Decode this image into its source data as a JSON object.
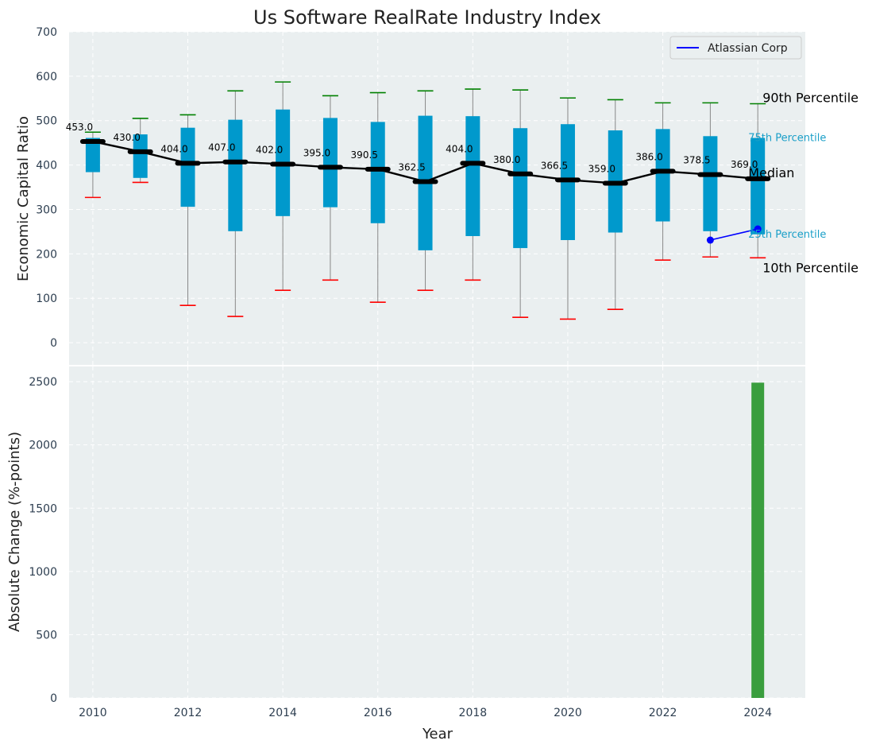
{
  "title": "Us Software RealRate Industry Index",
  "chart_data": [
    {
      "type": "box",
      "ylabel": "Economic Capital Ratio",
      "ylim": [
        -50,
        700
      ],
      "yticks": [
        0,
        100,
        200,
        300,
        400,
        500,
        600,
        700
      ],
      "years": [
        2010,
        2011,
        2012,
        2013,
        2014,
        2015,
        2016,
        2017,
        2018,
        2019,
        2020,
        2021,
        2022,
        2023,
        2024
      ],
      "p10": [
        327,
        361,
        84,
        59,
        118,
        141,
        91,
        118,
        141,
        57,
        53,
        75,
        186,
        193,
        191
      ],
      "q1": [
        384,
        371,
        306,
        251,
        285,
        305,
        269,
        208,
        240,
        213,
        231,
        248,
        273,
        251,
        244
      ],
      "median": [
        453.0,
        430.0,
        404.0,
        407.0,
        402.0,
        395.0,
        390.5,
        362.5,
        404.0,
        380.0,
        366.5,
        359.0,
        386.0,
        378.5,
        369.0
      ],
      "median_labels": [
        "453.0",
        "430.0",
        "404.0",
        "407.0",
        "402.0",
        "395.0",
        "390.5",
        "362.5",
        "404.0",
        "380.0",
        "366.5",
        "359.0",
        "386.0",
        "378.5",
        "369.0"
      ],
      "q3": [
        461,
        469,
        484,
        502,
        525,
        506,
        497,
        511,
        510,
        483,
        492,
        478,
        481,
        465,
        461
      ],
      "p90": [
        474,
        505,
        513,
        567,
        587,
        556,
        563,
        567,
        571,
        569,
        551,
        547,
        540,
        540,
        538
      ],
      "company": {
        "name": "Atlassian Corp",
        "x": [
          2023,
          2024
        ],
        "y": [
          231,
          256
        ]
      },
      "annotations": {
        "p90": "90th Percentile",
        "q3": "75th Percentile",
        "median": "Median",
        "q1": "25th Percentile",
        "p10": "10th Percentile"
      },
      "legend_position": "top-right",
      "grid": true
    },
    {
      "type": "bar",
      "xlabel": "Year",
      "ylabel": "Absolute Change (%-points)",
      "ylim": [
        0,
        2620
      ],
      "yticks": [
        0,
        500,
        1000,
        1500,
        2000,
        2500
      ],
      "xticks": [
        2010,
        2012,
        2014,
        2016,
        2018,
        2020,
        2022,
        2024
      ],
      "x": [
        2024
      ],
      "values": [
        2492
      ],
      "grid": true
    }
  ],
  "colors": {
    "plot_bg": "#eaeff0",
    "box_fill": "#0099cc",
    "whisker": "#888888",
    "p90_cap": "#008000",
    "p10_cap": "#ff0000",
    "median_line": "#000000",
    "company_line": "#0000ff",
    "bar": "#3a9e3e",
    "annotation_small": "#1a9fc8"
  }
}
